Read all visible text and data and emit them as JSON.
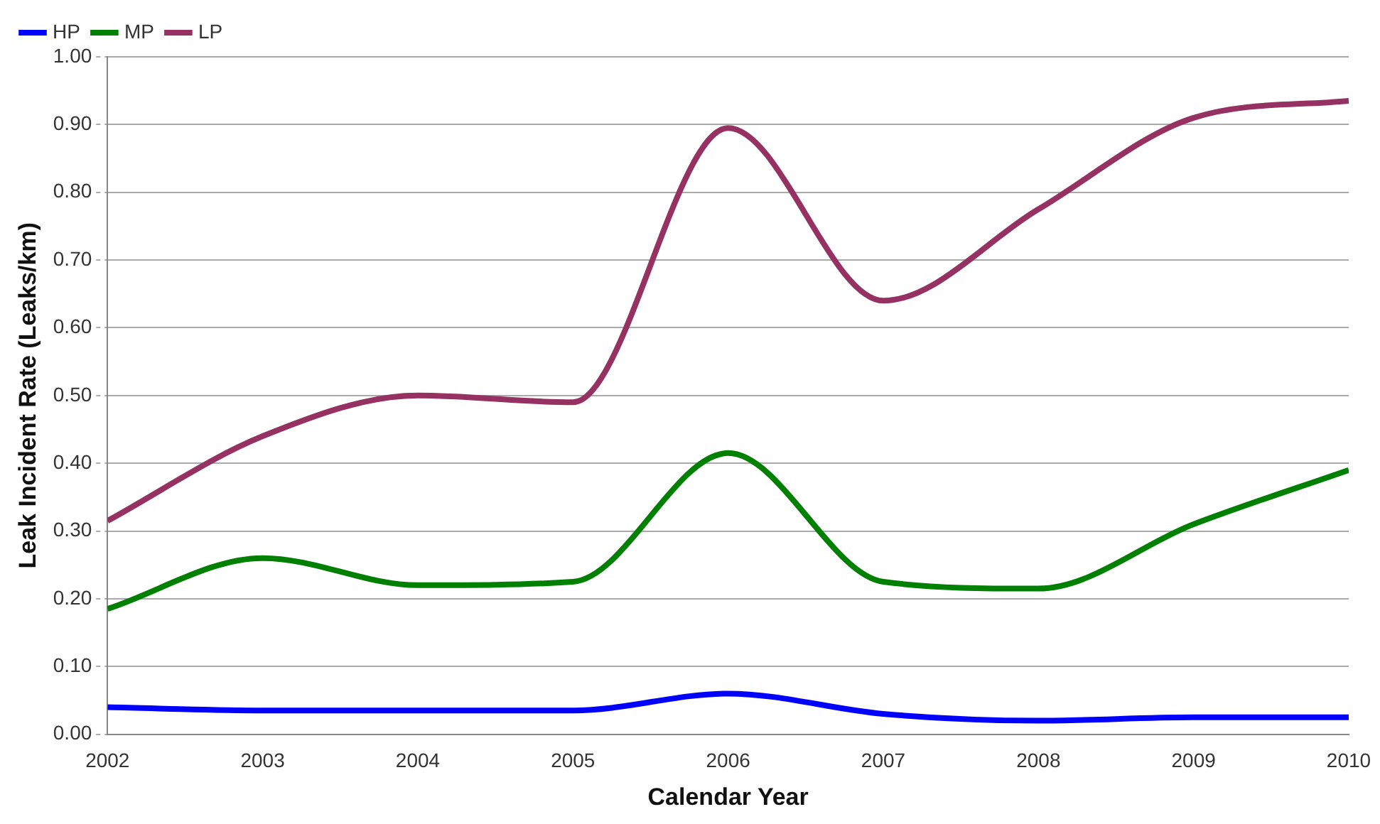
{
  "chart_data": {
    "type": "line",
    "xlabel": "Calendar Year",
    "ylabel": "Leak Incident Rate (Leaks/km)",
    "x": [
      2002,
      2003,
      2004,
      2005,
      2006,
      2007,
      2008,
      2009,
      2010
    ],
    "series": [
      {
        "name": "HP",
        "color": "#0000ff",
        "values": [
          0.04,
          0.035,
          0.035,
          0.035,
          0.06,
          0.03,
          0.02,
          0.025,
          0.025
        ]
      },
      {
        "name": "MP",
        "color": "#008000",
        "values": [
          0.185,
          0.26,
          0.22,
          0.225,
          0.415,
          0.225,
          0.215,
          0.31,
          0.39
        ]
      },
      {
        "name": "LP",
        "color": "#953262",
        "values": [
          0.315,
          0.44,
          0.5,
          0.49,
          0.895,
          0.64,
          0.775,
          0.91,
          0.935
        ]
      }
    ],
    "xlim": [
      2002,
      2010
    ],
    "xticks": [
      2002,
      2003,
      2004,
      2005,
      2006,
      2007,
      2008,
      2009,
      2010
    ],
    "ylim": [
      0,
      1
    ],
    "yticks": [
      {
        "value": 0,
        "label": "0.00"
      },
      {
        "value": 0.1,
        "label": "0.10"
      },
      {
        "value": 0.2,
        "label": "0.20"
      },
      {
        "value": 0.3,
        "label": "0.30"
      },
      {
        "value": 0.4,
        "label": "0.40"
      },
      {
        "value": 0.5,
        "label": "0.50"
      },
      {
        "value": 0.6,
        "label": "0.60"
      },
      {
        "value": 0.7,
        "label": "0.70"
      },
      {
        "value": 0.8,
        "label": "0.80"
      },
      {
        "value": 0.9,
        "label": "0.90"
      },
      {
        "value": 1,
        "label": "1.00"
      }
    ],
    "grid": "y",
    "legend": "top left",
    "marker": "none",
    "line_style": "solid"
  }
}
